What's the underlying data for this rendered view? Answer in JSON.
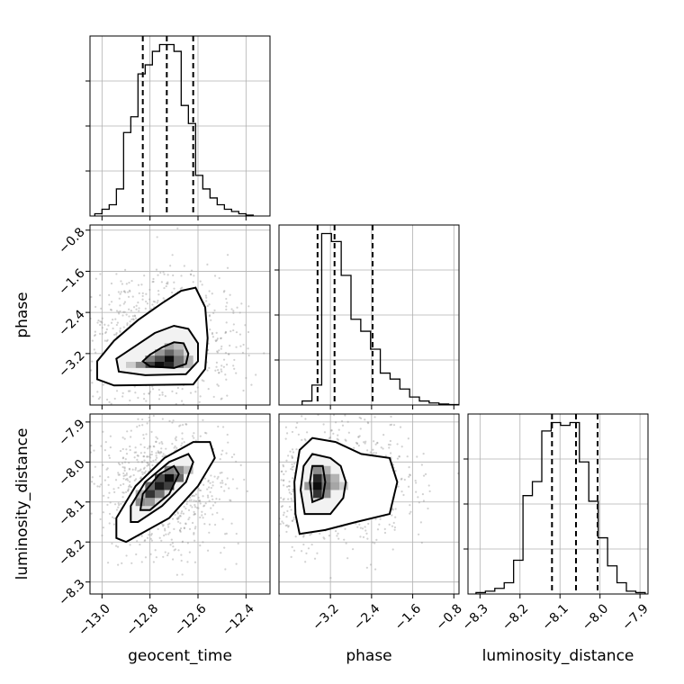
{
  "chart_data": {
    "type": "corner",
    "parameters": [
      "geocent_time",
      "phase",
      "luminosity_distance"
    ],
    "axis_labels": {
      "geocent_time": "geocent_time",
      "phase": "phase",
      "luminosity_distance": "luminosity_distance"
    },
    "ranges": {
      "geocent_time": [
        -13.05,
        -12.3
      ],
      "phase": [
        -4.2,
        -0.7
      ],
      "luminosity_distance": [
        -8.33,
        -7.88
      ]
    },
    "ticks": {
      "geocent_time": [
        -13.0,
        -12.8,
        -12.6,
        -12.4
      ],
      "phase": [
        -3.2,
        -2.4,
        -1.6,
        -0.8
      ],
      "luminosity_distance": [
        -8.3,
        -8.2,
        -8.1,
        -8.0,
        -7.9
      ]
    },
    "tick_labels": {
      "geocent_time": [
        "−13.0",
        "−12.8",
        "−12.6",
        "−12.4"
      ],
      "phase": [
        "−3.2",
        "−2.4",
        "−1.6",
        "−0.8"
      ],
      "luminosity_distance": [
        "−8.3",
        "−8.2",
        "−8.1",
        "−8.0",
        "−7.9"
      ]
    },
    "histograms": {
      "geocent_time": {
        "edges_start": -13.03,
        "bin_width": 0.03,
        "counts": [
          1,
          3,
          5,
          12,
          37,
          44,
          63,
          67,
          73,
          76,
          76,
          73,
          49,
          41,
          18,
          12,
          8,
          5,
          3,
          2,
          1,
          0.4
        ]
      },
      "phase": {
        "edges_start": -3.75,
        "bin_width": 0.19,
        "counts": [
          2,
          10,
          86,
          82,
          65,
          43,
          37,
          28,
          16,
          13,
          8,
          4,
          2,
          1,
          0.5,
          0.2
        ]
      },
      "luminosity_distance": {
        "edges_start": -8.31,
        "bin_width": 0.0235,
        "counts": [
          0.5,
          1,
          2,
          4,
          12,
          35,
          40,
          58,
          61,
          60,
          61,
          47,
          33,
          20,
          10,
          4,
          1,
          0.5
        ]
      }
    },
    "quantiles": {
      "geocent_time": [
        -12.83,
        -12.73,
        -12.62
      ],
      "phase": [
        -3.45,
        -3.12,
        -2.38
      ],
      "luminosity_distance": [
        -8.12,
        -8.06,
        -8.006
      ]
    },
    "pairs": [
      {
        "x": "geocent_time",
        "y": "phase",
        "peak": [
          -12.74,
          -3.3
        ],
        "contours": [
          [
            [
              -12.7,
              -3.48
            ],
            [
              -12.65,
              -3.4
            ],
            [
              -12.64,
              -3.2
            ],
            [
              -12.66,
              -3.0
            ],
            [
              -12.7,
              -2.98
            ],
            [
              -12.75,
              -3.08
            ],
            [
              -12.8,
              -3.22
            ],
            [
              -12.83,
              -3.35
            ],
            [
              -12.8,
              -3.45
            ]
          ],
          [
            [
              -12.82,
              -3.62
            ],
            [
              -12.65,
              -3.6
            ],
            [
              -12.6,
              -3.35
            ],
            [
              -12.6,
              -3.0
            ],
            [
              -12.64,
              -2.72
            ],
            [
              -12.7,
              -2.66
            ],
            [
              -12.78,
              -2.8
            ],
            [
              -12.86,
              -3.05
            ],
            [
              -12.94,
              -3.3
            ],
            [
              -12.93,
              -3.55
            ]
          ],
          [
            [
              -12.95,
              -3.82
            ],
            [
              -12.62,
              -3.8
            ],
            [
              -12.57,
              -3.5
            ],
            [
              -12.56,
              -2.9
            ],
            [
              -12.57,
              -2.3
            ],
            [
              -12.61,
              -1.92
            ],
            [
              -12.67,
              -1.98
            ],
            [
              -12.75,
              -2.22
            ],
            [
              -12.85,
              -2.55
            ],
            [
              -12.95,
              -2.95
            ],
            [
              -13.02,
              -3.35
            ],
            [
              -13.02,
              -3.7
            ]
          ]
        ],
        "density_cells": [
          [
            -12.76,
            -3.42,
            0.95
          ],
          [
            -12.72,
            -3.42,
            0.85
          ],
          [
            -12.72,
            -3.3,
            0.95
          ],
          [
            -12.8,
            -3.42,
            0.75
          ],
          [
            -12.76,
            -3.3,
            0.7
          ],
          [
            -12.68,
            -3.3,
            0.55
          ],
          [
            -12.68,
            -3.42,
            0.55
          ],
          [
            -12.72,
            -3.18,
            0.6
          ],
          [
            -12.72,
            -3.06,
            0.35
          ],
          [
            -12.84,
            -3.42,
            0.45
          ],
          [
            -12.8,
            -3.3,
            0.5
          ],
          [
            -12.68,
            -3.18,
            0.4
          ],
          [
            -12.76,
            -3.18,
            0.4
          ],
          [
            -12.88,
            -3.42,
            0.2
          ],
          [
            -12.64,
            -3.42,
            0.3
          ],
          [
            -12.68,
            -3.06,
            0.25
          ],
          [
            -12.64,
            -3.3,
            0.3
          ]
        ]
      },
      {
        "x": "geocent_time",
        "y": "luminosity_distance",
        "peak": [
          -12.74,
          -8.06
        ],
        "contours": [
          [
            [
              -12.8,
              -8.12
            ],
            [
              -12.72,
              -8.08
            ],
            [
              -12.68,
              -8.03
            ],
            [
              -12.7,
              -8.01
            ],
            [
              -12.76,
              -8.03
            ],
            [
              -12.83,
              -8.08
            ],
            [
              -12.84,
              -8.12
            ]
          ],
          [
            [
              -12.85,
              -8.15
            ],
            [
              -12.75,
              -8.11
            ],
            [
              -12.65,
              -8.05
            ],
            [
              -12.62,
              -8.0
            ],
            [
              -12.64,
              -7.98
            ],
            [
              -12.72,
              -8.0
            ],
            [
              -12.82,
              -8.05
            ],
            [
              -12.88,
              -8.11
            ],
            [
              -12.88,
              -8.15
            ]
          ],
          [
            [
              -12.9,
              -8.2
            ],
            [
              -12.72,
              -8.14
            ],
            [
              -12.6,
              -8.06
            ],
            [
              -12.53,
              -7.99
            ],
            [
              -12.55,
              -7.95
            ],
            [
              -12.62,
              -7.95
            ],
            [
              -12.74,
              -7.99
            ],
            [
              -12.86,
              -8.06
            ],
            [
              -12.94,
              -8.14
            ],
            [
              -12.94,
              -8.19
            ]
          ]
        ],
        "density_cells": [
          [
            -12.72,
            -8.04,
            0.95
          ],
          [
            -12.76,
            -8.06,
            0.9
          ],
          [
            -12.8,
            -8.08,
            0.8
          ],
          [
            -12.72,
            -8.06,
            0.75
          ],
          [
            -12.76,
            -8.04,
            0.7
          ],
          [
            -12.68,
            -8.04,
            0.6
          ],
          [
            -12.8,
            -8.06,
            0.6
          ],
          [
            -12.84,
            -8.1,
            0.45
          ],
          [
            -12.76,
            -8.08,
            0.55
          ],
          [
            -12.68,
            -8.02,
            0.45
          ],
          [
            -12.72,
            -8.02,
            0.5
          ],
          [
            -12.64,
            -8.02,
            0.25
          ],
          [
            -12.84,
            -8.08,
            0.3
          ],
          [
            -12.8,
            -8.1,
            0.4
          ]
        ]
      },
      {
        "x": "phase",
        "y": "luminosity_distance",
        "peak": [
          -3.45,
          -8.06
        ],
        "contours": [
          [
            [
              -3.55,
              -8.1
            ],
            [
              -3.35,
              -8.09
            ],
            [
              -3.3,
              -8.05
            ],
            [
              -3.35,
              -8.01
            ],
            [
              -3.55,
              -8.01
            ],
            [
              -3.6,
              -8.05
            ]
          ],
          [
            [
              -3.7,
              -8.13
            ],
            [
              -3.2,
              -8.13
            ],
            [
              -2.95,
              -8.09
            ],
            [
              -2.9,
              -8.05
            ],
            [
              -3.0,
              -8.01
            ],
            [
              -3.2,
              -7.99
            ],
            [
              -3.55,
              -7.98
            ],
            [
              -3.72,
              -8.01
            ],
            [
              -3.78,
              -8.07
            ]
          ],
          [
            [
              -3.8,
              -8.18
            ],
            [
              -3.3,
              -8.17
            ],
            [
              -2.7,
              -8.15
            ],
            [
              -2.05,
              -8.13
            ],
            [
              -1.9,
              -8.05
            ],
            [
              -2.05,
              -7.99
            ],
            [
              -2.6,
              -7.98
            ],
            [
              -3.1,
              -7.95
            ],
            [
              -3.55,
              -7.94
            ],
            [
              -3.8,
              -7.97
            ],
            [
              -3.9,
              -8.05
            ],
            [
              -3.88,
              -8.13
            ]
          ]
        ],
        "density_cells": [
          [
            -3.45,
            -8.06,
            0.95
          ],
          [
            -3.45,
            -8.04,
            0.85
          ],
          [
            -3.45,
            -8.08,
            0.8
          ],
          [
            -3.28,
            -8.06,
            0.55
          ],
          [
            -3.28,
            -8.04,
            0.5
          ],
          [
            -3.28,
            -8.08,
            0.45
          ],
          [
            -3.11,
            -8.06,
            0.35
          ],
          [
            -3.11,
            -8.04,
            0.3
          ],
          [
            -3.62,
            -8.06,
            0.4
          ],
          [
            -3.45,
            -8.02,
            0.45
          ],
          [
            -3.28,
            -8.02,
            0.3
          ],
          [
            -2.94,
            -8.06,
            0.2
          ]
        ]
      }
    ]
  }
}
